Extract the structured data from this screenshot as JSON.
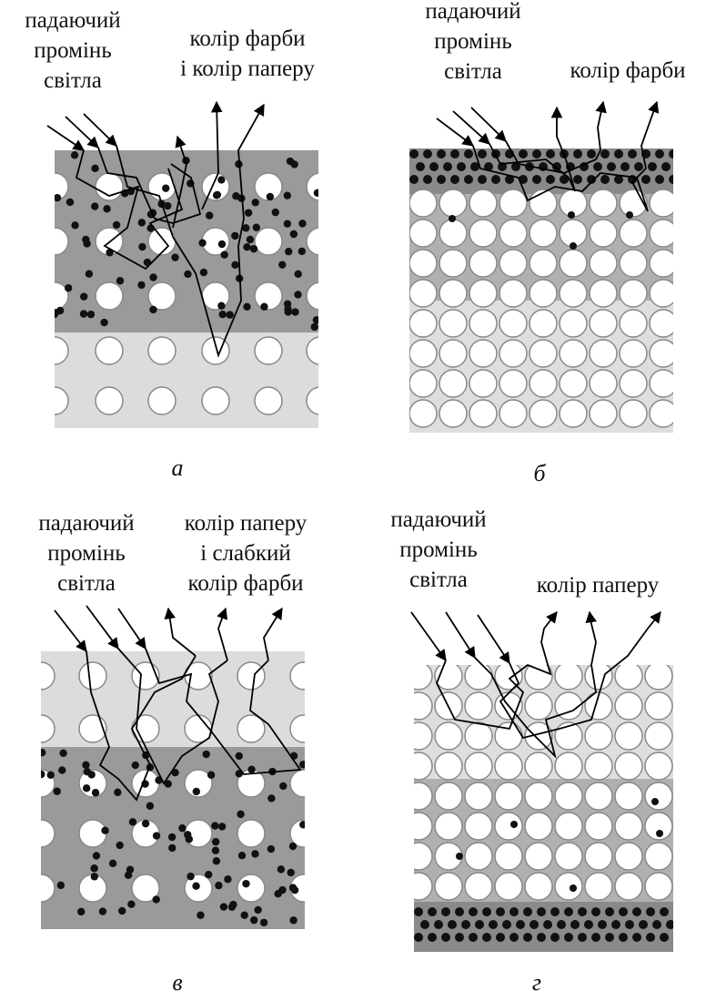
{
  "panels": [
    {
      "caption": "а",
      "incident": [
        "падаючий",
        "промінь",
        "світла"
      ],
      "reflected": [
        "колір фарби",
        "і колір паперу"
      ]
    },
    {
      "caption": "б",
      "incident": [
        "падаючий",
        "промінь",
        "світла"
      ],
      "reflected": [
        "колір фарби"
      ]
    },
    {
      "caption": "в",
      "incident": [
        "падаючий",
        "промінь",
        "світла"
      ],
      "reflected": [
        "колір паперу",
        "і слабкий",
        "колір фарби"
      ]
    },
    {
      "caption": "г",
      "incident": [
        "падаючий",
        "промінь",
        "світла"
      ],
      "reflected": [
        "колір паперу"
      ]
    }
  ]
}
